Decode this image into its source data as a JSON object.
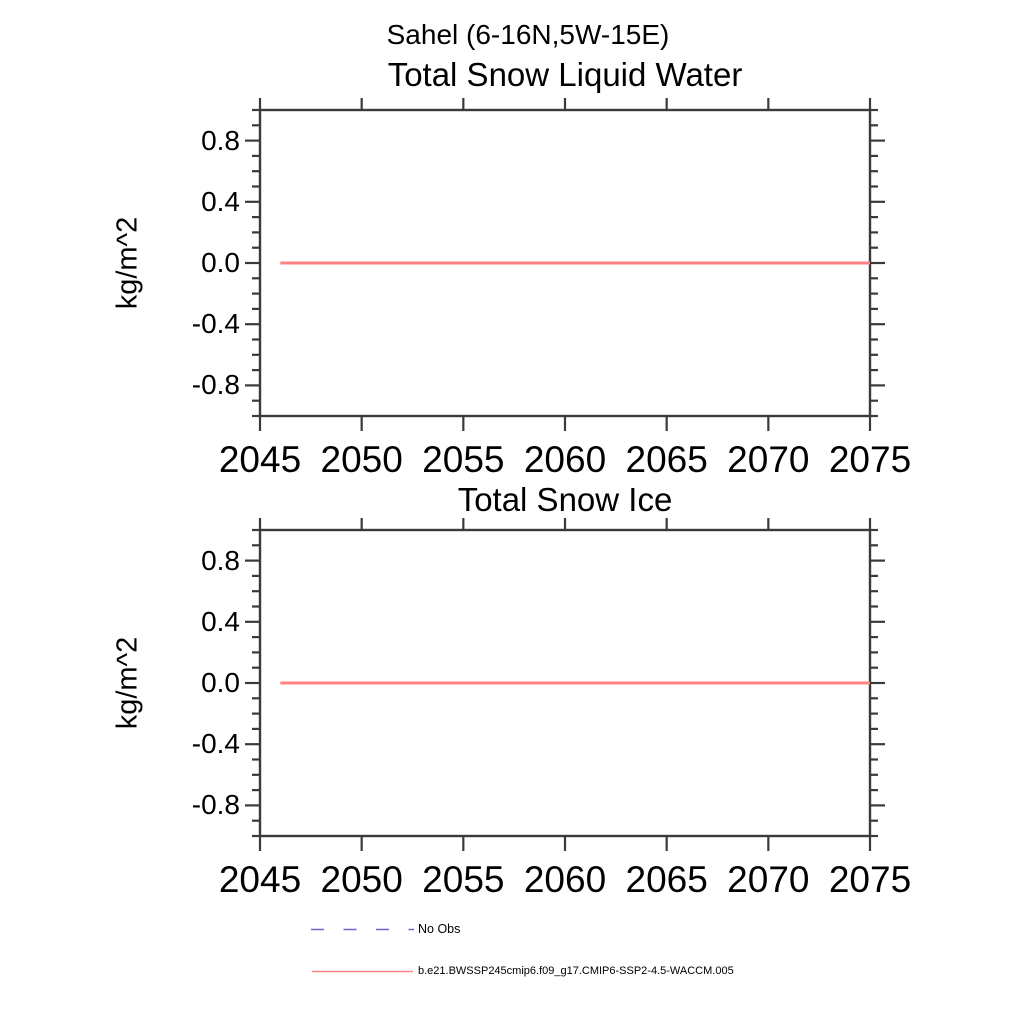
{
  "suptitle": "Sahel (6-16N,5W-15E)",
  "axis_color": "#3a3a3a",
  "legend": {
    "items": [
      {
        "label": "No Obs",
        "color": "#6969d2",
        "style": "dashed"
      },
      {
        "label": "b.e21.BWSSP245cmip6.f09_g17.CMIP6-SSP2-4.5-WACCM.005",
        "color": "#ff8181",
        "style": "solid"
      }
    ]
  },
  "chart_data": [
    {
      "type": "line",
      "title": "Total Snow Liquid Water",
      "suptitle": "Sahel (6-16N,5W-15E)",
      "xlabel": "",
      "ylabel": "kg/m^2",
      "xlim": [
        2045,
        2075
      ],
      "ylim": [
        -1.0,
        1.0
      ],
      "x_major_ticks": [
        2045,
        2050,
        2055,
        2060,
        2065,
        2070,
        2075
      ],
      "x_tick_labels": [
        "2045",
        "2050",
        "2055",
        "2060",
        "2065",
        "2070",
        "2075"
      ],
      "y_major_ticks": [
        0.8,
        0.4,
        0.0,
        -0.4,
        -0.8
      ],
      "y_tick_labels": [
        "0.8",
        "0.4",
        "0.0",
        "-0.4",
        "-0.8"
      ],
      "y_minor_tick_step": 0.1,
      "grid": false,
      "legend_position": "below-figure",
      "series": [
        {
          "name": "No Obs",
          "color": "#6969d2",
          "line_style": "dashed",
          "x": [],
          "values": []
        },
        {
          "name": "b.e21.BWSSP245cmip6.f09_g17.CMIP6-SSP2-4.5-WACCM.005",
          "color": "#ff8181",
          "line_style": "solid",
          "x": [
            2046,
            2075
          ],
          "values": [
            0.0,
            0.0
          ]
        }
      ]
    },
    {
      "type": "line",
      "title": "Total Snow Ice",
      "suptitle": "Sahel (6-16N,5W-15E)",
      "xlabel": "",
      "ylabel": "kg/m^2",
      "xlim": [
        2045,
        2075
      ],
      "ylim": [
        -1.0,
        1.0
      ],
      "x_major_ticks": [
        2045,
        2050,
        2055,
        2060,
        2065,
        2070,
        2075
      ],
      "x_tick_labels": [
        "2045",
        "2050",
        "2055",
        "2060",
        "2065",
        "2070",
        "2075"
      ],
      "y_major_ticks": [
        0.8,
        0.4,
        0.0,
        -0.4,
        -0.8
      ],
      "y_tick_labels": [
        "0.8",
        "0.4",
        "0.0",
        "-0.4",
        "-0.8"
      ],
      "y_minor_tick_step": 0.1,
      "grid": false,
      "legend_position": "below-figure",
      "series": [
        {
          "name": "No Obs",
          "color": "#6969d2",
          "line_style": "dashed",
          "x": [],
          "values": []
        },
        {
          "name": "b.e21.BWSSP245cmip6.f09_g17.CMIP6-SSP2-4.5-WACCM.005",
          "color": "#ff8181",
          "line_style": "solid",
          "x": [
            2046,
            2075
          ],
          "values": [
            0.0,
            0.0
          ]
        }
      ]
    }
  ]
}
